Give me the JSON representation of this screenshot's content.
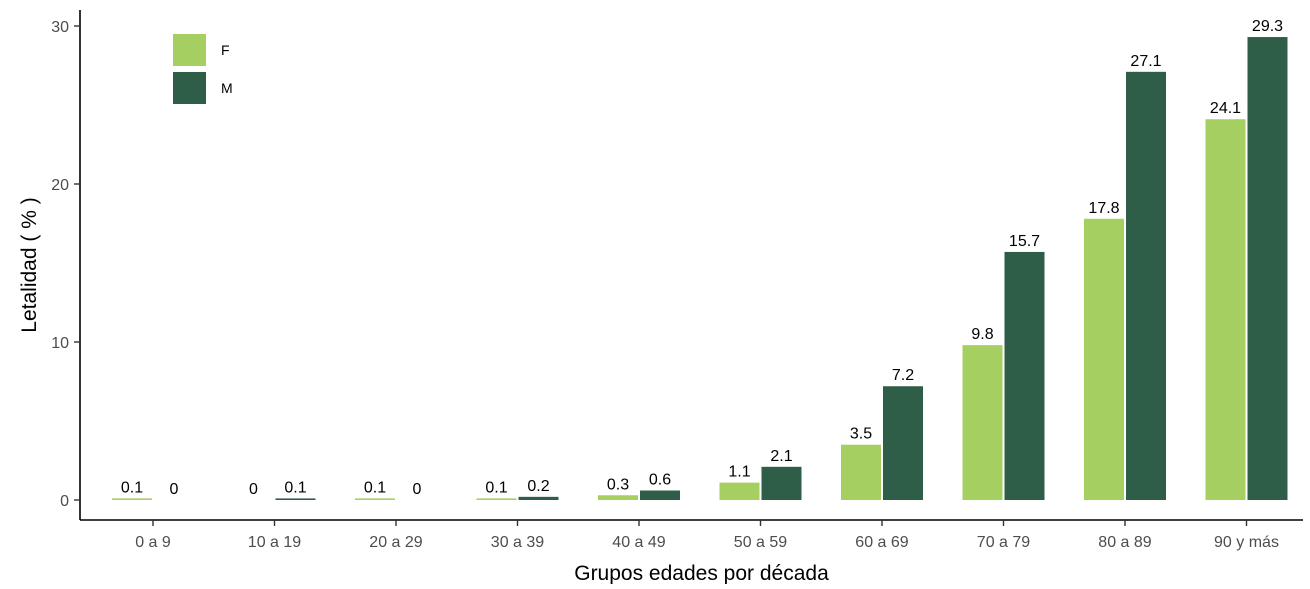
{
  "chart_data": {
    "type": "bar",
    "title": "",
    "xlabel": "Grupos edades por década",
    "ylabel": "Letalidad ( % )",
    "ylim": [
      0,
      30.5
    ],
    "yticks": [
      0,
      10,
      20,
      30
    ],
    "grid": false,
    "legend": {
      "placement": "top-left",
      "entries": [
        "F",
        "M"
      ]
    },
    "categories": [
      "0 a 9",
      "10 a 19",
      "20 a 29",
      "30 a 39",
      "40 a 49",
      "50 a 59",
      "60 a 69",
      "70 a 79",
      "80 a 89",
      "90  y más"
    ],
    "series": [
      {
        "name": "F",
        "color": "#a6cf62",
        "values": [
          0.1,
          0,
          0.1,
          0.1,
          0.3,
          1.1,
          3.5,
          9.8,
          17.8,
          24.1
        ],
        "labels": [
          "0.1",
          "0",
          "0.1",
          "0.1",
          "0.3",
          "1.1",
          "3.5",
          "9.8",
          "17.8",
          "24.1"
        ]
      },
      {
        "name": "M",
        "color": "#2e5e47",
        "values": [
          0,
          0.1,
          0,
          0.2,
          0.6,
          2.1,
          7.2,
          15.7,
          27.1,
          29.3
        ],
        "labels": [
          "0",
          "0.1",
          "0",
          "0.2",
          "0.6",
          "2.1",
          "7.2",
          "15.7",
          "27.1",
          "29.3"
        ]
      }
    ]
  }
}
